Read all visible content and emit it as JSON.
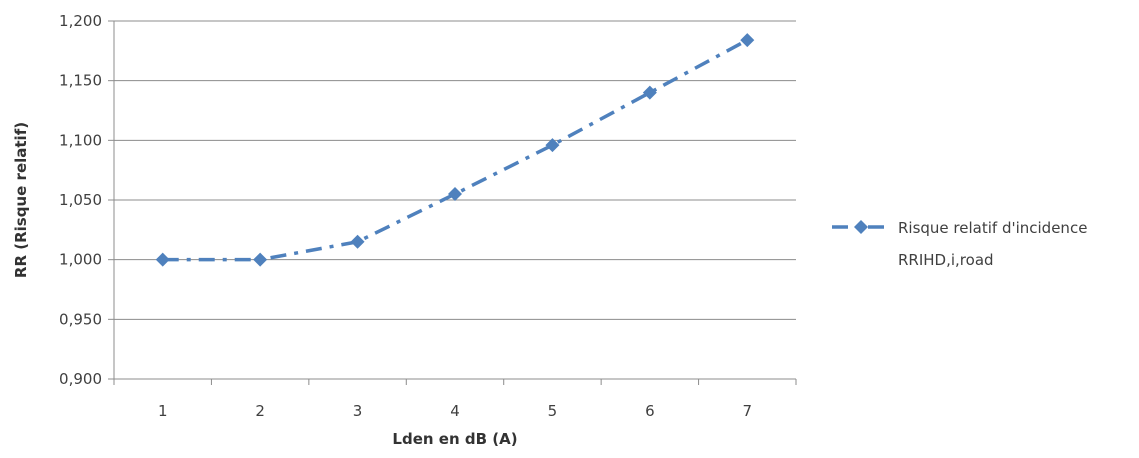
{
  "chart_data": {
    "type": "line",
    "title": "",
    "xlabel": "Lden en dB (A)",
    "ylabel": "RR (Risque relatif)",
    "categories": [
      "1",
      "2",
      "3",
      "4",
      "5",
      "6",
      "7"
    ],
    "ylim": [
      0.9,
      1.2
    ],
    "yticks": [
      0.9,
      0.95,
      1.0,
      1.05,
      1.1,
      1.15,
      1.2
    ],
    "ytick_labels": [
      "0,900",
      "0,950",
      "1,000",
      "1,050",
      "1,100",
      "1,150",
      "1,200"
    ],
    "grid": "horizontal",
    "legend_position": "right",
    "series": [
      {
        "name": "Risque relatif d'incidence RRIHD,i,road",
        "legend_lines": [
          "Risque relatif d'incidence",
          "RRIHD,i,road"
        ],
        "values": [
          1.0,
          1.0,
          1.015,
          1.055,
          1.096,
          1.14,
          1.184
        ],
        "color": "#4f81bd",
        "line_style": "dash-dot",
        "marker": "diamond"
      }
    ]
  }
}
